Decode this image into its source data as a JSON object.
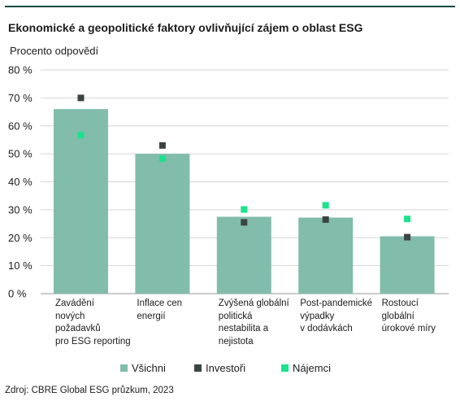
{
  "title": "Ekonomické a geopolitické faktory ovlivňující zájem o oblast ESG",
  "source": "Zdroj: CBRE Global ESG průzkum, 2023",
  "colors": {
    "accent_rule": "#0a4a43",
    "bars": "#82bcab",
    "investors": "#3b4442",
    "tenants": "#1ae38c",
    "grid": "#d6d6d6"
  },
  "chart_data": {
    "type": "bar",
    "ylabel": "Procento odpovědí",
    "ylim": [
      0,
      80
    ],
    "yticks": [
      "0 %",
      "10 %",
      "20 %",
      "30 %",
      "40 %",
      "50 %",
      "60 %",
      "70 %",
      "80 %"
    ],
    "categories": [
      [
        "Zavádění",
        "nových",
        "požadavků",
        "pro ESG reporting"
      ],
      [
        "Inflace cen",
        "energií"
      ],
      [
        "Zvýšená globální",
        "politická",
        "nestabilita a",
        "nejistota"
      ],
      [
        "Post-pandemické",
        "výpadky",
        "v dodávkách"
      ],
      [
        "Rostoucí",
        "globální",
        "úrokové míry"
      ]
    ],
    "series": [
      {
        "name": "Všichni",
        "kind": "bar",
        "values": [
          66,
          50,
          27.5,
          27.2,
          20.5
        ]
      },
      {
        "name": "Investoři",
        "kind": "marker",
        "values": [
          70,
          53,
          25.5,
          26.5,
          20.2
        ]
      },
      {
        "name": "Nájemci",
        "kind": "marker",
        "values": [
          56.7,
          48.3,
          30.1,
          31.6,
          26.7
        ]
      }
    ],
    "grid": true,
    "legend_position": "bottom"
  }
}
